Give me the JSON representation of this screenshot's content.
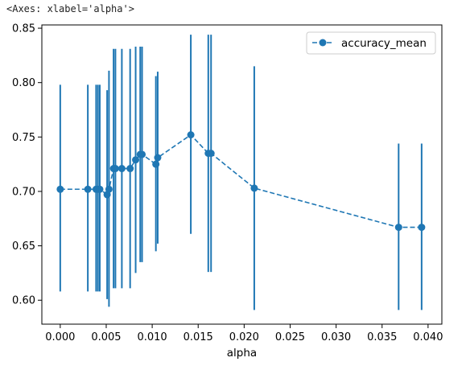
{
  "repr_text": "<Axes: xlabel='alpha'>",
  "chart_data": {
    "type": "line",
    "xlabel": "alpha",
    "ylabel": "",
    "title": "",
    "xlim": [
      -0.002,
      0.0415
    ],
    "ylim": [
      0.578,
      0.853
    ],
    "xticks": [
      0.0,
      0.005,
      0.01,
      0.015,
      0.02,
      0.025,
      0.03,
      0.035,
      0.04
    ],
    "xtick_labels": [
      "0.000",
      "0.005",
      "0.010",
      "0.015",
      "0.020",
      "0.025",
      "0.030",
      "0.035",
      "0.040"
    ],
    "yticks": [
      0.6,
      0.65,
      0.7,
      0.75,
      0.8,
      0.85
    ],
    "ytick_labels": [
      "0.60",
      "0.65",
      "0.70",
      "0.75",
      "0.80",
      "0.85"
    ],
    "grid": false,
    "legend_position": "top-right",
    "color": "#1f77b4",
    "series": [
      {
        "name": "accuracy_mean",
        "line_style": "dashed",
        "marker": "circle",
        "x": [
          0.0,
          0.003,
          0.0039,
          0.0041,
          0.0043,
          0.0051,
          0.0053,
          0.0058,
          0.006,
          0.0067,
          0.0076,
          0.0082,
          0.0087,
          0.0089,
          0.0104,
          0.0106,
          0.0142,
          0.0161,
          0.0164,
          0.0211,
          0.0368,
          0.0393
        ],
        "y": [
          0.702,
          0.702,
          0.702,
          0.702,
          0.702,
          0.697,
          0.702,
          0.721,
          0.721,
          0.721,
          0.721,
          0.729,
          0.734,
          0.734,
          0.725,
          0.731,
          0.752,
          0.735,
          0.735,
          0.703,
          0.667,
          0.667
        ],
        "err_low": [
          0.608,
          0.608,
          0.608,
          0.608,
          0.608,
          0.601,
          0.594,
          0.611,
          0.611,
          0.611,
          0.611,
          0.625,
          0.635,
          0.635,
          0.645,
          0.652,
          0.661,
          0.626,
          0.626,
          0.591,
          0.591,
          0.591
        ],
        "err_high": [
          0.798,
          0.798,
          0.798,
          0.798,
          0.798,
          0.793,
          0.811,
          0.831,
          0.831,
          0.831,
          0.831,
          0.833,
          0.833,
          0.833,
          0.806,
          0.81,
          0.844,
          0.844,
          0.844,
          0.815,
          0.744,
          0.744
        ]
      }
    ]
  }
}
